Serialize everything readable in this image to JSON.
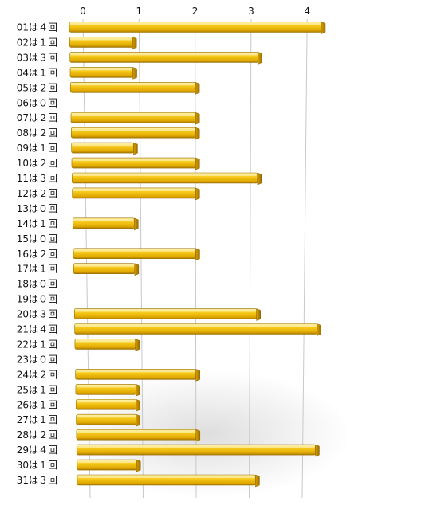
{
  "chart_data": {
    "type": "bar",
    "orientation": "horizontal",
    "title": "",
    "xlabel": "",
    "ylabel": "",
    "xlim": [
      0,
      4
    ],
    "x_ticks": [
      "0",
      "1",
      "2",
      "3",
      "4"
    ],
    "grid": true,
    "legend": "none",
    "categories": [
      "01は４回",
      "02は１回",
      "03は３回",
      "04は１回",
      "05は２回",
      "06は０回",
      "07は２回",
      "08は２回",
      "09は１回",
      "10は２回",
      "11は３回",
      "12は２回",
      "13は０回",
      "14は１回",
      "15は０回",
      "16は２回",
      "17は１回",
      "18は０回",
      "19は０回",
      "20は３回",
      "21は４回",
      "22は１回",
      "23は０回",
      "24は２回",
      "25は１回",
      "26は１回",
      "27は１回",
      "28は２回",
      "29は４回",
      "30は１回",
      "31は３回"
    ],
    "values": [
      4,
      1,
      3,
      1,
      2,
      0,
      2,
      2,
      1,
      2,
      3,
      2,
      0,
      1,
      0,
      2,
      1,
      0,
      0,
      3,
      4,
      1,
      0,
      2,
      1,
      1,
      1,
      2,
      4,
      1,
      3
    ],
    "colors": {
      "bar": "#f5c518",
      "bar_light": "#ffe27a",
      "bar_shadow": "#8a6400",
      "grid": "#c8c8c8",
      "text": "#111111"
    }
  }
}
